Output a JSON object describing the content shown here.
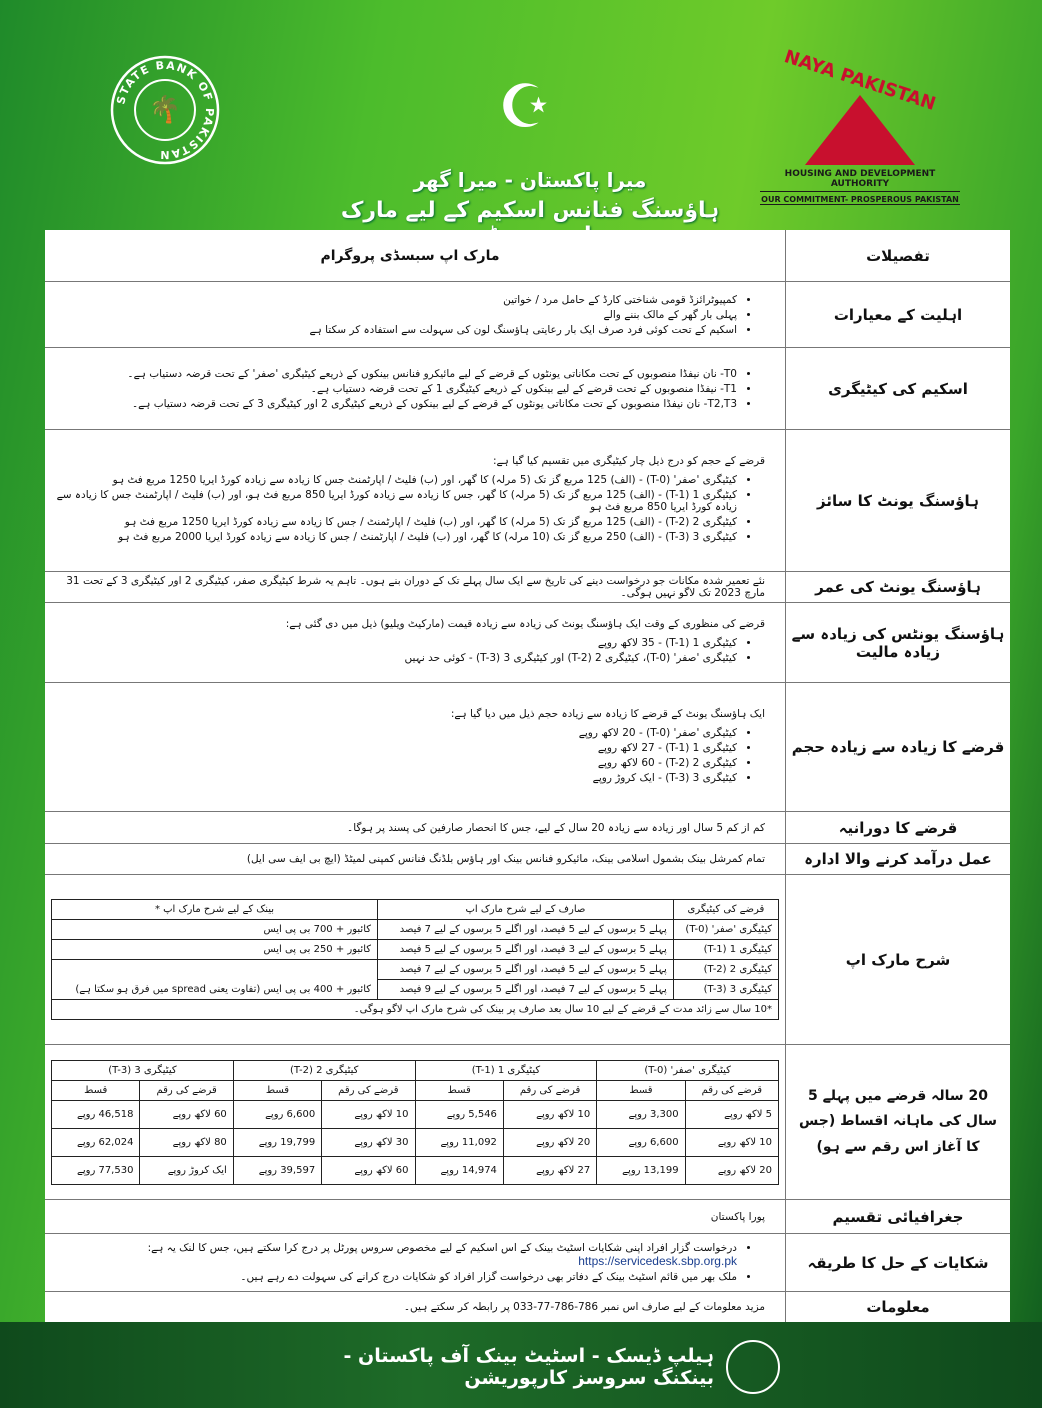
{
  "header": {
    "sbp_logo_text": "STATE BANK OF PAKISTAN",
    "nphda_name": "NAYA PAKISTAN",
    "nphda_sub": "HOUSING AND DEVELOPMENT AUTHORITY",
    "nphda_tagline": "OUR COMMITMENT- PROSPEROUS PAKISTAN",
    "title": "میرا پاکستان - میرا گھر",
    "subtitle": "ہاؤسنگ فنانس اسکیم کے لیے مارک اپ سبسڈی"
  },
  "table": {
    "col_details": "تفصیلات",
    "col_program": "مارک اپ سبسڈی پروگرام",
    "eligibility": {
      "label": "اہلیت کے معیارات",
      "items": [
        "کمپیوٹرائزڈ قومی شناختی کارڈ کے حامل مرد / خواتین",
        "پہلی بار گھر کے مالک بننے والے",
        "اسکیم کے تحت کوئی فرد صرف ایک بار رعایتی ہاؤسنگ لون کی سہولت سے استفادہ کر سکتا ہے"
      ]
    },
    "category": {
      "label": "اسکیم کی کیٹیگری",
      "items": [
        "T0- نان نیفڈا منصوبوں کے تحت مکاناتی یونٹوں کے قرضے کے لیے مائیکرو فنانس بینکوں کے ذریعے کیٹیگری 'صفر' کے تحت قرضہ دستیاب ہے۔",
        "T1- نیفڈا منصوبوں کے تحت قرضے کے لیے بینکوں کے ذریعے کیٹیگری 1 کے تحت قرضہ دستیاب ہے۔",
        "T2,T3- نان نیفڈا منصوبوں کے تحت مکاناتی یونٹوں کے قرضے کے لیے بینکوں کے ذریعے کیٹیگری 2 اور کیٹیگری 3 کے تحت قرضہ دستیاب ہے۔"
      ]
    },
    "unit_size": {
      "label": "ہاؤسنگ یونٹ کا سائز",
      "intro": "قرضے کے حجم کو درج ذیل چار کیٹیگری میں تقسیم کیا گیا ہے:",
      "items": [
        "کیٹیگری 'صفر' (T-0) - (الف) 125 مربع گز تک (5 مرلہ) کا گھر، اور (ب) فلیٹ / اپارٹمنٹ جس کا زیادہ سے زیادہ کورڈ ایریا 1250 مربع فٹ ہو",
        "کیٹیگری 1 (T-1) - (الف) 125 مربع گز تک (5 مرلہ) کا گھر، جس کا زیادہ سے زیادہ کورڈ ایریا 850 مربع فٹ ہو، اور (ب) فلیٹ / اپارٹمنٹ جس کا زیادہ سے زیادہ کورڈ ایریا 850 مربع فٹ ہو",
        "کیٹیگری 2 (T-2) - (الف) 125 مربع گز تک (5 مرلہ) کا گھر، اور (ب) فلیٹ / اپارٹمنٹ / جس کا زیادہ سے زیادہ کورڈ ایریا 1250 مربع فٹ ہو",
        "کیٹیگری 3 (T-3) - (الف) 250 مربع گز تک (10 مرلہ) کا گھر، اور (ب) فلیٹ / اپارٹمنٹ / جس کا زیادہ سے زیادہ کورڈ ایریا 2000 مربع فٹ ہو"
      ]
    },
    "unit_age": {
      "label": "ہاؤسنگ یونٹ کی عمر",
      "text": "نئے تعمیر شدہ مکانات جو درخواست دینے کی تاریخ سے ایک سال پہلے تک کے دوران بنے ہوں۔ تاہم یہ شرط کیٹیگری صفر، کیٹیگری 2 اور کیٹیگری 3 کے تحت 31 مارچ 2023 تک لاگو نہیں ہوگی۔"
    },
    "max_value": {
      "label": "ہاؤسنگ یونٹس کی زیادہ سے زیادہ مالیت",
      "intro": "قرضے کی منظوری کے وقت ایک ہاؤسنگ یونٹ کی زیادہ سے زیادہ قیمت (مارکیٹ ویلیو) ذیل میں دی گئی ہے:",
      "items": [
        "کیٹیگری 1 (T-1) - 35 لاکھ روپے",
        "کیٹیگری 'صفر' (T-0)، کیٹیگری 2 (T-2) اور کیٹیگری 3 (T-3) - کوئی حد نہیں"
      ]
    },
    "max_loan": {
      "label": "قرضے کا زیادہ سے زیادہ حجم",
      "intro": "ایک ہاؤسنگ یونٹ کے قرضے کا زیادہ سے زیادہ حجم ذیل میں دیا گیا ہے:",
      "items": [
        "کیٹیگری 'صفر' (T-0) - 20 لاکھ روپے",
        "کیٹیگری 1 (T-1) - 27 لاکھ روپے",
        "کیٹیگری 2 (T-2) - 60 لاکھ روپے",
        "کیٹیگری 3 (T-3) - ایک کروڑ روپے"
      ]
    },
    "tenure": {
      "label": "قرضے کا دورانیہ",
      "text": "کم از کم 5 سال اور زیادہ سے زیادہ 20 سال کے لیے، جس کا انحصار صارفین کی پسند پر ہوگا۔"
    },
    "institution": {
      "label": "عمل درآمد کرنے والا ادارہ",
      "text": "تمام کمرشل بینک بشمول اسلامی بینک، مائیکرو فنانس بینک اور ہاؤس بلڈنگ فنانس کمپنی لمیٹڈ (ایچ بی ایف سی ایل)"
    },
    "markup": {
      "label": "شرح مارک اپ",
      "headers": [
        "قرضے کی کیٹیگری",
        "صارف کے لیے شرح مارک اپ",
        "بینک کے لیے شرح مارک اپ *"
      ],
      "rows": [
        [
          "کیٹیگری 'صفر' (T-0)",
          "پہلے 5 برسوں کے لیے 5 فیصد، اور اگلے 5 برسوں کے لیے 7 فیصد",
          "کائبور + 700 بی پی ایس"
        ],
        [
          "کیٹیگری 1 (T-1)",
          "پہلے 5 برسوں کے لیے 3 فیصد، اور اگلے 5 برسوں کے لیے 5 فیصد",
          "کائبور + 250 بی پی ایس"
        ],
        [
          "کیٹیگری 2 (T-2)",
          "پہلے 5 برسوں کے لیے 5 فیصد، اور اگلے 5 برسوں کے لیے 7 فیصد",
          ""
        ],
        [
          "کیٹیگری 3 (T-3)",
          "پہلے 5 برسوں کے لیے 7 فیصد، اور اگلے 5 برسوں کے لیے 9 فیصد",
          "کائبور + 400 بی پی ایس (تفاوت یعنی spread میں فرق ہو سکتا ہے)"
        ]
      ],
      "footnote": "*10 سال سے زائد مدت کے قرضے کے لیے 10 سال بعد صارف پر بینک کی شرح مارک اپ لاگو ہوگی۔"
    },
    "installments": {
      "label": "20 سالہ قرضے میں پہلے 5 سال کی ماہانہ اقساط (جس کا آغاز اس رقم سے ہو)",
      "sub_amount": "قرضے کی رقم",
      "sub_installment": "قسط",
      "groups": [
        {
          "name": "کیٹیگری 'صفر' (T-0)",
          "rows": [
            [
              "5 لاکھ روپے",
              "3,300 روپے"
            ],
            [
              "10 لاکھ روپے",
              "6,600 روپے"
            ],
            [
              "20 لاکھ روپے",
              "13,199 روپے"
            ]
          ]
        },
        {
          "name": "کیٹیگری 1 (T-1)",
          "rows": [
            [
              "10 لاکھ روپے",
              "5,546 روپے"
            ],
            [
              "20 لاکھ روپے",
              "11,092 روپے"
            ],
            [
              "27 لاکھ روپے",
              "14,974 روپے"
            ]
          ]
        },
        {
          "name": "کیٹیگری 2 (T-2)",
          "rows": [
            [
              "10 لاکھ روپے",
              "6,600 روپے"
            ],
            [
              "30 لاکھ روپے",
              "19,799 روپے"
            ],
            [
              "60 لاکھ روپے",
              "39,597 روپے"
            ]
          ]
        },
        {
          "name": "کیٹیگری 3 (T-3)",
          "rows": [
            [
              "60 لاکھ روپے",
              "46,518 روپے"
            ],
            [
              "80 لاکھ روپے",
              "62,024 روپے"
            ],
            [
              "ایک کروڑ روپے",
              "77,530 روپے"
            ]
          ]
        }
      ]
    },
    "geography": {
      "label": "جغرافیائی تقسیم",
      "text": "پورا پاکستان"
    },
    "complaints": {
      "label": "شکایات کے حل کا طریقہ",
      "item1": "درخواست گزار افراد اپنی شکایات اسٹیٹ بینک کے اس اسکیم کے لیے مخصوص سروس پورٹل پر درج کرا سکتے ہیں، جس کا لنک یہ ہے:",
      "url": "https://servicedesk.sbp.org.pk",
      "item2": "ملک بھر میں قائم اسٹیٹ بینک کے دفاتر بھی درخواست گزار افراد کو شکایات درج کرانے کی سہولت دے رہے ہیں۔"
    },
    "info": {
      "label": "معلومات",
      "text": "مزید معلومات کے لیے صارف اس نمبر 786-786-77-033 پر رابطہ کر سکتے ہیں۔"
    }
  },
  "footer": {
    "text": "ہیلپ ڈیسک - اسٹیٹ بینک آف پاکستان - بینکنگ سروسز کارپوریشن"
  }
}
